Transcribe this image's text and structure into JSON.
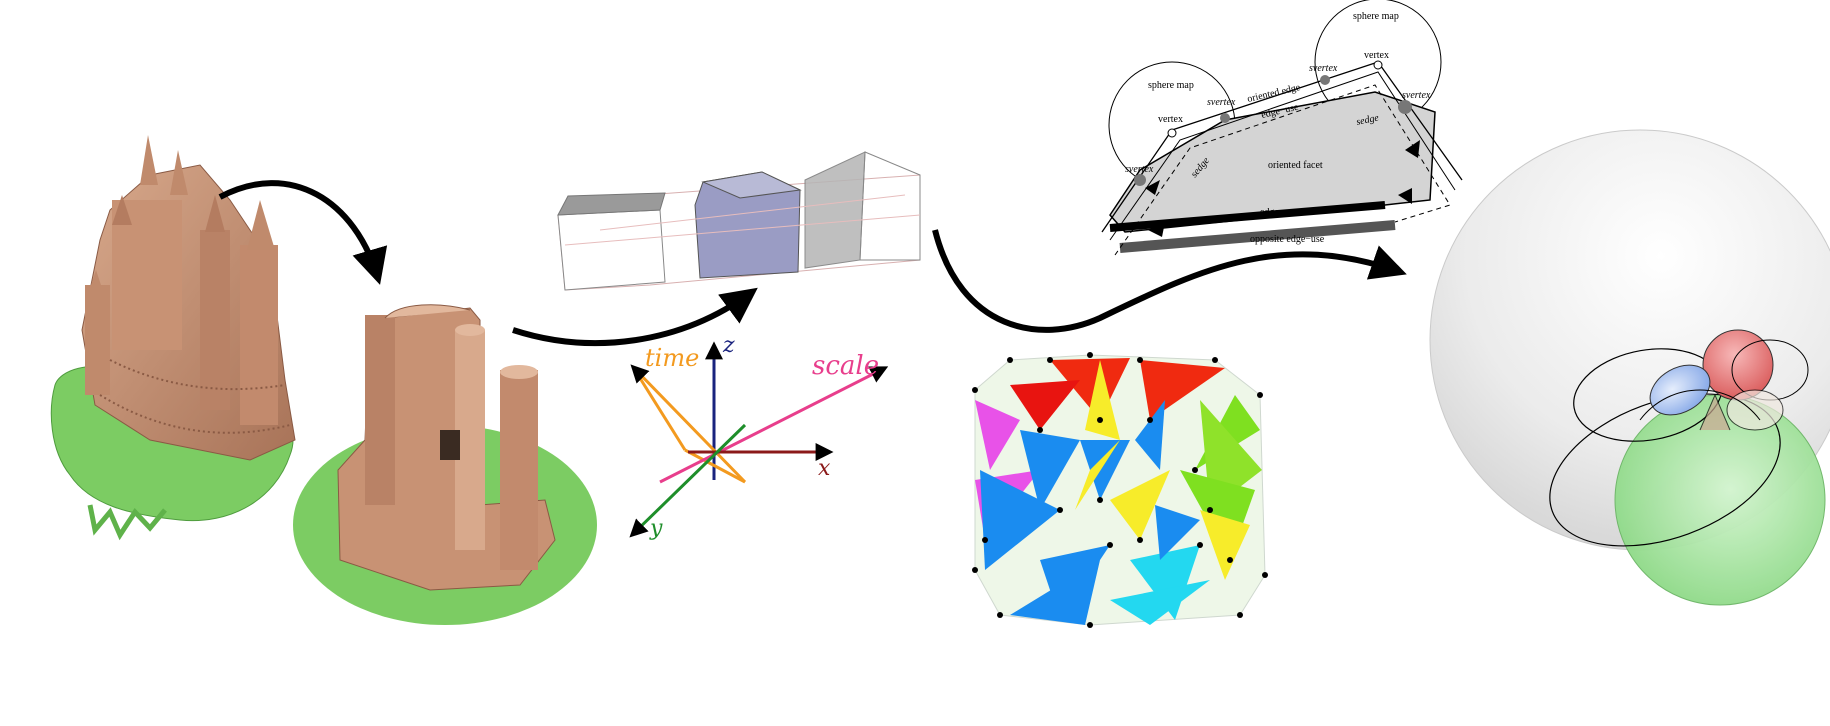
{
  "axes": {
    "time": "time",
    "z": "z",
    "scale": "scale",
    "x": "x",
    "y": "y"
  },
  "nef": {
    "sphere_map_left": "sphere map",
    "sphere_map_right": "sphere map",
    "vertex_left": "vertex",
    "vertex_right": "vertex",
    "svertex_top_left": "svertex",
    "svertex_top_mid": "svertex",
    "svertex_right": "svertex",
    "svertex_left": "svertex",
    "oriented_edge": "oriented edge",
    "edge_use_top": "edge−use",
    "sedge_right": "sedge",
    "sedge_left": "sedge",
    "oriented_facet": "oriented facet",
    "edge_use_bottom": "edge−use",
    "opposite_edge_use": "opposite edge−use"
  },
  "colors": {
    "castle": "#c9977a",
    "grass": "#7ccc63",
    "arrow": "#000000",
    "time_axis": "#f39a1f",
    "z_axis": "#1a237e",
    "scale_axis": "#e83e8c",
    "x_axis": "#8b1a1a",
    "y_axis": "#1e8e2a",
    "cube": "#9a9cc4",
    "sphere_big": "#e6e6e6",
    "sphere_green": "#9fe09a",
    "sphere_red": "#e87878",
    "sphere_blue": "#a8c2ee"
  }
}
